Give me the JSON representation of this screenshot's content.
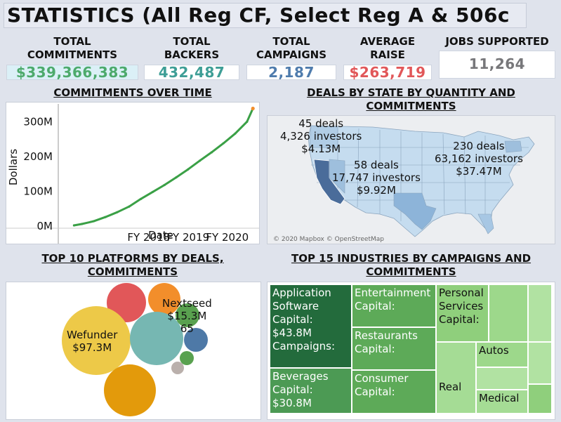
{
  "title": "STATISTICS (All Reg CF, Select Reg A & 506c",
  "kpis": [
    {
      "label": "TOTAL\nCOMMITMENTS",
      "value": "$339,366,383",
      "color": "#4daa6c",
      "bg": "#dbf0f7"
    },
    {
      "label": "TOTAL\nBACKERS",
      "value": "432,487",
      "color": "#3e9e96",
      "bg": "#ffffff"
    },
    {
      "label": "TOTAL\nCAMPAIGNS",
      "value": "2,187",
      "color": "#4f7cad",
      "bg": "#ffffff"
    },
    {
      "label": "AVERAGE\nRAISE",
      "value": "$263,719",
      "color": "#e15759",
      "bg": "#ffffff"
    },
    {
      "label": "JOBS SUPPORTED",
      "value": "11,264",
      "color": "#77777a",
      "bg": "#ffffff"
    }
  ],
  "commitments_panel": {
    "title": "COMMITMENTS OVER TIME"
  },
  "map_panel": {
    "title": "DEALS BY STATE BY QUANTITY AND\nCOMMITMENTS",
    "attribution": "© 2020 Mapbox © OpenStreetMap",
    "labels": [
      {
        "deals": "45 deals",
        "investors": "4,326 investors",
        "amount": "$4.13M"
      },
      {
        "deals": "58 deals",
        "investors": "17,747 investors",
        "amount": "$9.92M"
      },
      {
        "deals": "230 deals",
        "investors": "63,162 investors",
        "amount": "$37.47M"
      }
    ]
  },
  "platforms_panel": {
    "title": "TOP 10 PLATFORMS BY DEALS,\nCOMMITMENTS"
  },
  "industries_panel": {
    "title": "TOP 15 INDUSTRIES BY CAMPAIGNS AND\nCOMMITMENTS"
  },
  "chart_data": [
    {
      "type": "line",
      "title": "COMMITMENTS OVER TIME",
      "xlabel": "Date",
      "ylabel": "Dollars",
      "x_ticks": [
        "FY 2018",
        "FY 2019",
        "FY 2020"
      ],
      "y_ticks": [
        "0M",
        "100M",
        "200M",
        "300M"
      ],
      "ylim": [
        0,
        339
      ],
      "series": [
        {
          "color": "#3aa046",
          "x": [
            2016.4,
            2016.6,
            2016.9,
            2017.2,
            2017.5,
            2017.8,
            2018.1,
            2018.4,
            2018.7,
            2019.0,
            2019.3,
            2019.6,
            2019.9,
            2020.2,
            2020.5,
            2020.8,
            2020.95
          ],
          "y": [
            2,
            6,
            14,
            26,
            40,
            56,
            78,
            98,
            118,
            140,
            163,
            188,
            212,
            238,
            266,
            300,
            338
          ]
        }
      ]
    },
    {
      "type": "map",
      "title": "DEALS BY STATE BY QUANTITY AND COMMITMENTS",
      "highlighted": [
        {
          "deals": 45,
          "investors": 4326,
          "commitments_musd": 4.13
        },
        {
          "deals": 58,
          "investors": 17747,
          "commitments_musd": 9.92
        },
        {
          "deals": 230,
          "investors": 63162,
          "commitments_musd": 37.47
        }
      ]
    },
    {
      "type": "bubble",
      "title": "TOP 10 PLATFORMS BY DEALS, COMMITMENTS",
      "bubbles": [
        {
          "label": "Wefunder\n$97.3M",
          "color": "#edc948"
        },
        {
          "label": "",
          "color": "#76b7b2"
        },
        {
          "label": "",
          "color": "#f28e2b"
        },
        {
          "label": "",
          "color": "#e15759"
        },
        {
          "label": "",
          "color": "#f28e2b"
        },
        {
          "label": "Nextseed\n$15.3M\n65",
          "color": "#59a14f"
        },
        {
          "label": "",
          "color": "#4e79a7"
        },
        {
          "label": "",
          "color": "#59a14f"
        },
        {
          "label": "",
          "color": "#bab0ac"
        }
      ]
    },
    {
      "type": "treemap",
      "title": "TOP 15 INDUSTRIES BY CAMPAIGNS AND COMMITMENTS",
      "cells": [
        {
          "label": "Application\nSoftware\nCapital:\n$43.8M\nCampaigns:",
          "color": "#236b3c"
        },
        {
          "label": "Beverages\nCapital:\n$30.8M",
          "color": "#4c9a54"
        },
        {
          "label": "Entertainment\nCapital:",
          "color": "#5daa58"
        },
        {
          "label": "Restaurants\nCapital:",
          "color": "#5daa58"
        },
        {
          "label": "Consumer\nCapital:",
          "color": "#5daa58"
        },
        {
          "label": "Personal\nServices\nCapital:",
          "color": "#8fcf7c"
        },
        {
          "label": "Autos",
          "color": "#9dd88b"
        },
        {
          "label": "Real",
          "color": "#a5dc95"
        },
        {
          "label": "Medical",
          "color": "#a5dc95"
        }
      ]
    }
  ]
}
